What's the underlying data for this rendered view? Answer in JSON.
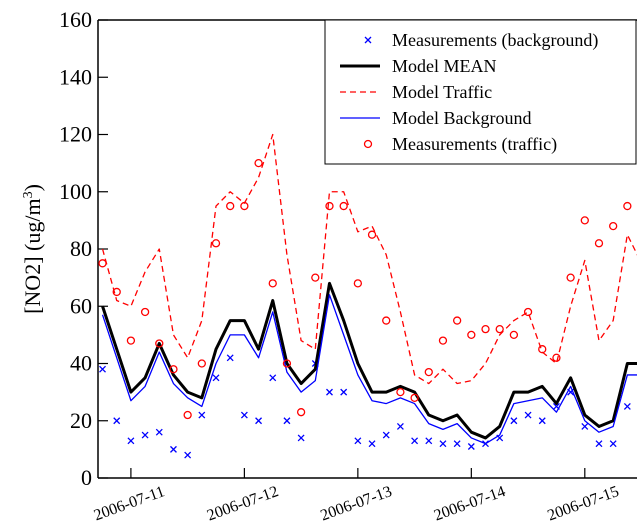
{
  "chart_data": {
    "type": "line",
    "ylabel": {
      "text": "[NO2] (ug/m",
      "sup": "3",
      "tail": ")"
    },
    "x": [
      -0.25,
      -0.125,
      0,
      0.125,
      0.25,
      0.375,
      0.5,
      0.625,
      0.75,
      0.875,
      1,
      1.125,
      1.25,
      1.375,
      1.5,
      1.625,
      1.75,
      1.875,
      2,
      2.125,
      2.25,
      2.375,
      2.5,
      2.625,
      2.75,
      2.875,
      3,
      3.125,
      3.25,
      3.375,
      3.5,
      3.625,
      3.75,
      3.875,
      4,
      4.125,
      4.25,
      4.375,
      4.5
    ],
    "xlim": [
      -0.29,
      4.46
    ],
    "xticks": [
      {
        "value": 0,
        "label": "2006-07-11"
      },
      {
        "value": 1,
        "label": "2006-07-12"
      },
      {
        "value": 2,
        "label": "2006-07-13"
      },
      {
        "value": 3,
        "label": "2006-07-14"
      },
      {
        "value": 4,
        "label": "2006-07-15"
      }
    ],
    "ylim": [
      0,
      160
    ],
    "yticks": [
      0,
      20,
      40,
      60,
      80,
      100,
      120,
      140,
      160
    ],
    "legend": "top-right",
    "series": [
      {
        "name": "Measurements (background)",
        "color": "#0000ff",
        "marker": "x",
        "values": [
          38,
          20,
          13,
          15,
          16,
          10,
          8,
          22,
          35,
          42,
          22,
          20,
          35,
          20,
          14,
          40,
          30,
          30,
          13,
          12,
          15,
          18,
          13,
          13,
          12,
          12,
          11,
          12,
          14,
          20,
          22,
          20,
          25,
          30,
          18,
          12,
          12,
          25,
          30
        ]
      },
      {
        "name": "Model MEAN",
        "color": "#000000",
        "width": 3,
        "values": [
          60,
          45,
          30,
          35,
          47,
          36,
          30,
          28,
          45,
          55,
          55,
          45,
          62,
          40,
          33,
          38,
          68,
          55,
          40,
          30,
          30,
          32,
          30,
          22,
          20,
          22,
          16,
          14,
          18,
          30,
          30,
          32,
          26,
          35,
          22,
          18,
          20,
          40,
          40
        ]
      },
      {
        "name": "Model Traffic",
        "color": "#ff0000",
        "dash": true,
        "width": 1.3,
        "values": [
          80,
          62,
          60,
          72,
          80,
          50,
          42,
          55,
          95,
          100,
          96,
          105,
          120,
          78,
          48,
          45,
          100,
          100,
          86,
          88,
          78,
          58,
          36,
          33,
          38,
          33,
          34,
          40,
          50,
          55,
          58,
          44,
          40,
          60,
          76,
          48,
          55,
          85,
          75
        ]
      },
      {
        "name": "Model Background",
        "color": "#0000ff",
        "width": 1.3,
        "values": [
          57,
          42,
          27,
          32,
          44,
          33,
          28,
          25,
          40,
          50,
          50,
          42,
          58,
          37,
          30,
          34,
          64,
          50,
          36,
          27,
          26,
          28,
          26,
          19,
          17,
          19,
          14,
          12,
          15,
          26,
          27,
          28,
          23,
          32,
          20,
          16,
          18,
          36,
          36
        ]
      },
      {
        "name": "Measurements (traffic)",
        "color": "#ff0000",
        "marker": "o",
        "values": [
          75,
          65,
          48,
          58,
          47,
          38,
          22,
          40,
          82,
          95,
          95,
          110,
          68,
          40,
          23,
          70,
          95,
          95,
          68,
          85,
          55,
          30,
          28,
          37,
          48,
          55,
          50,
          52,
          52,
          50,
          58,
          45,
          42,
          70,
          90,
          82,
          88,
          95,
          85
        ]
      }
    ]
  }
}
